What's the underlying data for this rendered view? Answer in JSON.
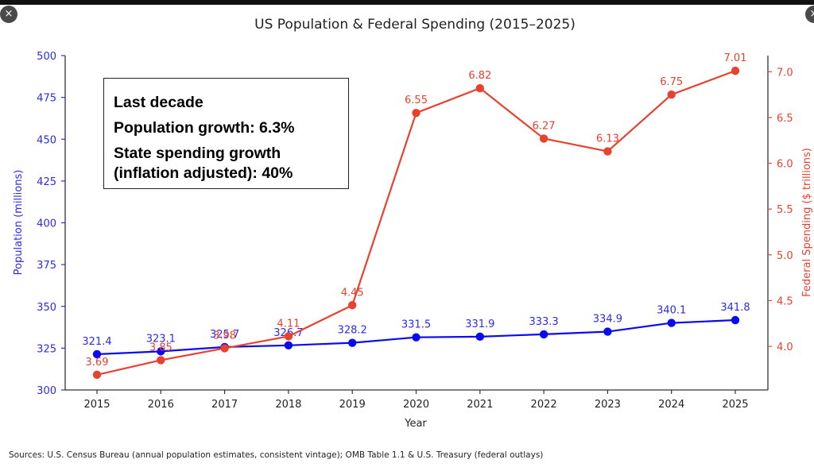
{
  "window": {
    "close_left_icon": "×",
    "close_right_icon": "×"
  },
  "annotation": {
    "line1": "Last decade",
    "line2": "Population growth: 6.3%",
    "line3": "State spending growth",
    "line4": "(inflation adjusted): 40%"
  },
  "source_note": "Sources: U.S. Census Bureau (annual population estimates, consistent vintage); OMB Table 1.1 & U.S. Treasury (federal outlays)",
  "colors": {
    "population": "#0a0af0",
    "spending": "#e8412f",
    "left_axis_text": "#2b2bea",
    "right_axis_text": "#e8412f"
  },
  "chart_data": {
    "type": "line",
    "title": "US Population & Federal Spending (2015–2025)",
    "xlabel": "Year",
    "ylabel": "Population (millions)",
    "y2label": "Federal Spending ($ trillions)",
    "x": [
      2015,
      2016,
      2017,
      2018,
      2019,
      2020,
      2021,
      2022,
      2023,
      2024,
      2025
    ],
    "x_ticks": [
      "2015",
      "2016",
      "2017",
      "2018",
      "2019",
      "2020",
      "2021",
      "2022",
      "2023",
      "2024",
      "2025"
    ],
    "ylim": [
      300,
      500
    ],
    "y_ticks": [
      "300",
      "325",
      "350",
      "375",
      "400",
      "425",
      "450",
      "475",
      "500"
    ],
    "y2lim": [
      3.524,
      7.176
    ],
    "y2_ticks": [
      "4.0",
      "4.5",
      "5.0",
      "5.5",
      "6.0",
      "6.5",
      "7.0"
    ],
    "grid": false,
    "legend": "none",
    "series": [
      {
        "name": "Population (millions)",
        "axis": "left",
        "values": [
          321.4,
          323.1,
          325.7,
          326.7,
          328.2,
          331.5,
          331.9,
          333.3,
          334.9,
          340.1,
          341.8
        ],
        "labels": [
          "321.4",
          "323.1",
          "325.7",
          "326.7",
          "328.2",
          "331.5",
          "331.9",
          "333.3",
          "334.9",
          "340.1",
          "341.8"
        ]
      },
      {
        "name": "Federal Spending ($ trillions)",
        "axis": "right",
        "values": [
          3.69,
          3.85,
          3.98,
          4.11,
          4.45,
          6.55,
          6.82,
          6.27,
          6.13,
          6.75,
          7.01
        ],
        "labels": [
          "3.69",
          "3.85",
          "3.98",
          "4.11",
          "4.45",
          "6.55",
          "6.82",
          "6.27",
          "6.13",
          "6.75",
          "7.01"
        ]
      }
    ]
  }
}
